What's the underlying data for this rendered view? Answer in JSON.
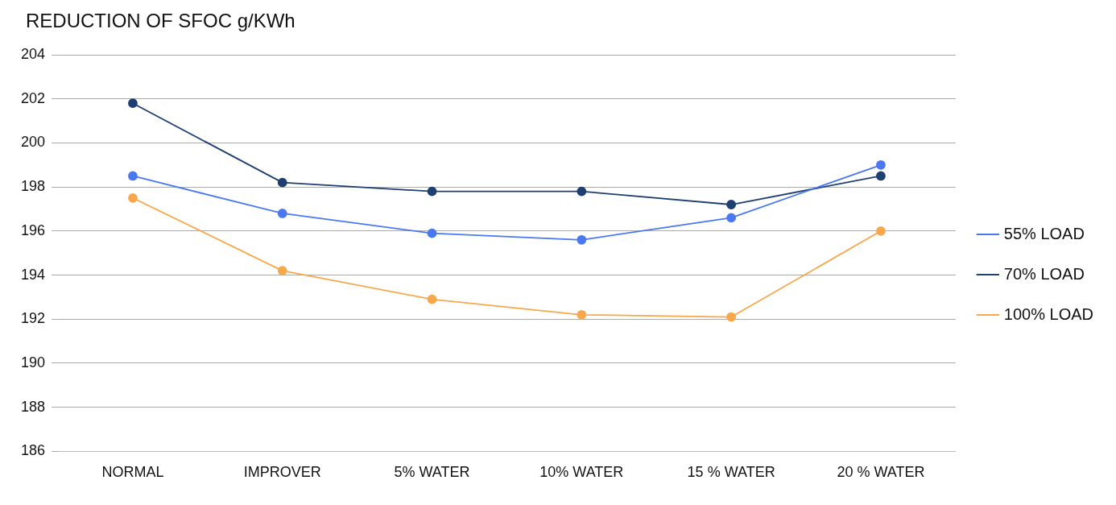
{
  "chart_data": {
    "type": "line",
    "title": "REDUCTION OF SFOC  g/KWh",
    "categories": [
      "NORMAL",
      "IMPROVER",
      "5% WATER",
      "10% WATER",
      "15 % WATER",
      "20 % WATER"
    ],
    "series": [
      {
        "name": "55% LOAD",
        "color": "#4a78f2",
        "values": [
          198.5,
          196.8,
          195.9,
          195.6,
          196.6,
          199.0
        ]
      },
      {
        "name": "70% LOAD",
        "color": "#1d3f72",
        "values": [
          201.8,
          198.2,
          197.8,
          197.8,
          197.2,
          198.5
        ]
      },
      {
        "name": "100% LOAD",
        "color": "#f8a84a",
        "values": [
          197.5,
          194.2,
          192.9,
          192.2,
          192.1,
          196.0
        ]
      }
    ],
    "ylim": [
      186,
      204
    ],
    "yticks": [
      186,
      188,
      190,
      192,
      194,
      196,
      198,
      200,
      202,
      204
    ],
    "grid": "y",
    "legend": "right",
    "marker": "circle",
    "line_style": "solid"
  }
}
